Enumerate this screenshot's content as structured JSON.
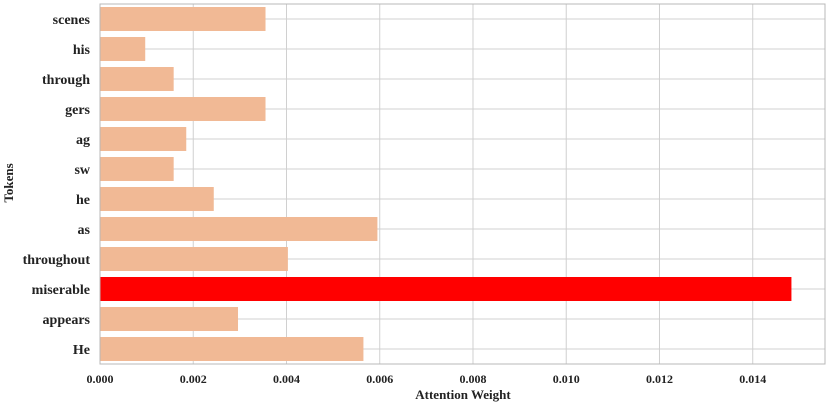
{
  "chart_data": {
    "type": "bar",
    "orientation": "horizontal",
    "title": "",
    "xlabel": "Attention Weight",
    "ylabel": "Tokens",
    "categories": [
      "scenes",
      "his",
      "through",
      "gers",
      "ag",
      "sw",
      "he",
      "as",
      "throughout",
      "miserable",
      "appears",
      "He"
    ],
    "values": [
      0.00355,
      0.00097,
      0.00158,
      0.00355,
      0.00185,
      0.00158,
      0.00244,
      0.00595,
      0.00403,
      0.01483,
      0.00296,
      0.00565
    ],
    "highlight_index": 9,
    "xlim": [
      0,
      0.01555
    ],
    "x_ticks": [
      "0.000",
      "0.002",
      "0.004",
      "0.006",
      "0.008",
      "0.010",
      "0.012",
      "0.014"
    ],
    "x_tick_values": [
      0,
      0.002,
      0.004,
      0.006,
      0.008,
      0.01,
      0.012,
      0.014
    ],
    "grid": true,
    "colors": {
      "bar": "#f1b995",
      "highlight": "#ff0000",
      "highlight_label": "#ff0000",
      "grid": "#d0d0d0",
      "frame": "#b8b8b8",
      "text": "#222222"
    }
  }
}
